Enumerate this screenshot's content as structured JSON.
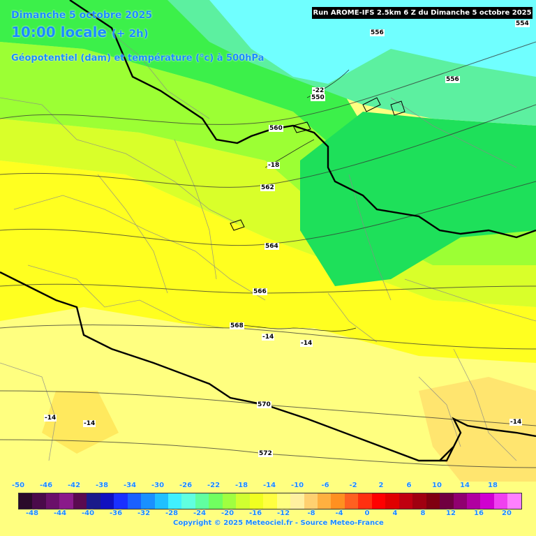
{
  "header": {
    "date_title": "Dimanche 5 octobre 2025",
    "local_time": "10:00 locale",
    "offset": "(+ 2h)",
    "parameter": "Géopotentiel (dam) et température (°c) à 500hPa",
    "run_banner": "Run AROME-IFS 2.5km 6 Z du Dimanche 5 octobre 2025"
  },
  "labels": [
    "556",
    "554",
    "556",
    "-22",
    "550",
    "560",
    "-18",
    "562",
    "564",
    "566",
    "568",
    "-14",
    "-14",
    "570",
    "572",
    "-14",
    "-14",
    "-14"
  ],
  "scale": {
    "top_ticks": [
      "-50",
      "-46",
      "-42",
      "-38",
      "-34",
      "-30",
      "-26",
      "-22",
      "-18",
      "-14",
      "-10",
      "-6",
      "-2",
      "2",
      "6",
      "10",
      "14",
      "18"
    ],
    "bottom_ticks": [
      "-48",
      "-44",
      "-40",
      "-36",
      "-32",
      "-28",
      "-24",
      "-20",
      "-16",
      "-12",
      "-8",
      "-4",
      "0",
      "4",
      "8",
      "12",
      "16",
      "20"
    ],
    "colors": [
      "#2a0a2a",
      "#4a0a4a",
      "#6a106a",
      "#8a1a8a",
      "#5a0a50",
      "#1a1a8a",
      "#1010c0",
      "#1a30ff",
      "#1a60ff",
      "#1a90ff",
      "#20c0ff",
      "#40f0ff",
      "#60ffe0",
      "#60ffa0",
      "#70ff60",
      "#a0ff40",
      "#d0ff30",
      "#f0ff20",
      "#ffff40",
      "#ffff80",
      "#fff0a0",
      "#ffd070",
      "#ffb040",
      "#ff9020",
      "#ff6020",
      "#ff3010",
      "#ff0000",
      "#e00000",
      "#c00010",
      "#a00010",
      "#800010",
      "#700040",
      "#900070",
      "#b000a0",
      "#d000d0",
      "#f040f0",
      "#ff80ff"
    ]
  },
  "footer": {
    "copyright": "Copyright © 2025 Meteociel.fr - Source Meteo-France"
  }
}
